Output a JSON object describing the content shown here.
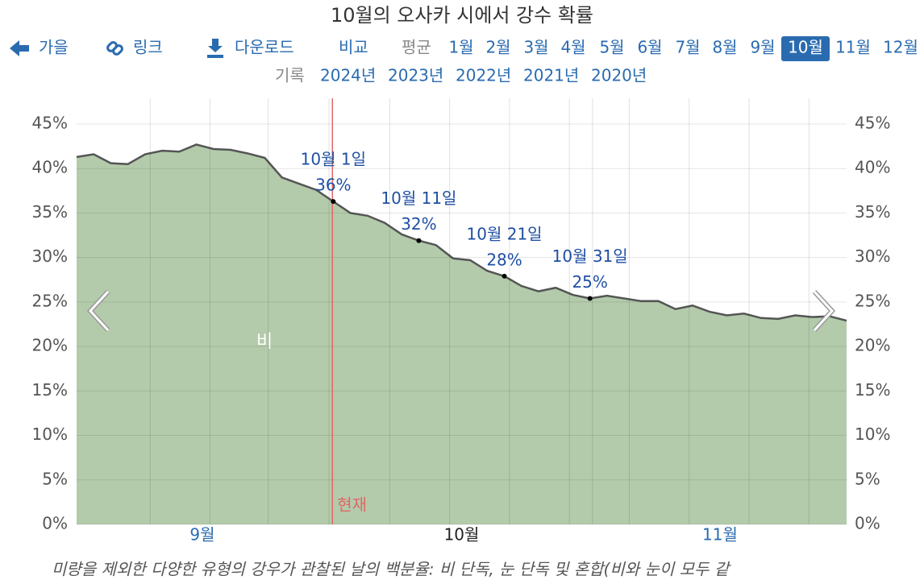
{
  "header": {
    "title": "10월의 오사카 시에서 강수 확률",
    "nav": [
      "가을",
      "링크",
      "다운로드",
      "비교"
    ],
    "average": "평균",
    "months": [
      "1월",
      "2월",
      "3월",
      "4월",
      "5월",
      "6월",
      "7월",
      "8월",
      "9월",
      "10월",
      "11월",
      "12월"
    ],
    "history": "기록",
    "years": [
      "2024년",
      "2023년",
      "2022년",
      "2021년",
      "2020년"
    ]
  },
  "chart_data": {
    "type": "area",
    "x": [
      0,
      2,
      4,
      6,
      8,
      10,
      12,
      14,
      16,
      18,
      20,
      22,
      24,
      26,
      28,
      30,
      32,
      34,
      36,
      38,
      40,
      42,
      44,
      46,
      48,
      50,
      52,
      54,
      56,
      58,
      60,
      62,
      64,
      66,
      68,
      70,
      72,
      74,
      76,
      78,
      80,
      82,
      84,
      86,
      88,
      90
    ],
    "series": [
      {
        "name": "비",
        "color": "#b3cbab",
        "values": [
          41.3,
          41.6,
          40.6,
          40.5,
          41.6,
          42.0,
          41.9,
          42.7,
          42.2,
          42.1,
          41.7,
          41.2,
          39.0,
          38.3,
          37.6,
          36.3,
          35.0,
          34.7,
          33.9,
          32.6,
          31.9,
          31.4,
          29.9,
          29.7,
          28.5,
          27.9,
          26.8,
          26.2,
          26.6,
          25.8,
          25.4,
          25.7,
          25.4,
          25.1,
          25.1,
          24.2,
          24.6,
          23.9,
          23.5,
          23.7,
          23.2,
          23.1,
          23.5,
          23.3,
          23.4,
          22.9
        ]
      }
    ],
    "xlim": [
      0,
      90
    ],
    "xticks": [
      {
        "value": 14.7,
        "label": "9월"
      },
      {
        "value": 45,
        "label": "10월"
      },
      {
        "value": 75.2,
        "label": "11월"
      }
    ],
    "xgrid": [
      8.6,
      15.6,
      22.4,
      29.5,
      36.6,
      43.6,
      50.6,
      57.6,
      60.3,
      64.6,
      71.6,
      78.6,
      85.6
    ],
    "ylim": [
      0,
      47.9
    ],
    "yticks": [
      {
        "value": 0,
        "label": "0%"
      },
      {
        "value": 5,
        "label": "5%"
      },
      {
        "value": 10,
        "label": "10%"
      },
      {
        "value": 15,
        "label": "15%"
      },
      {
        "value": 20,
        "label": "20%"
      },
      {
        "value": 25,
        "label": "25%"
      },
      {
        "value": 30,
        "label": "30%"
      },
      {
        "value": 35,
        "label": "35%"
      },
      {
        "value": 40,
        "label": "40%"
      },
      {
        "value": 45,
        "label": "45%"
      }
    ],
    "grid": true,
    "now": {
      "x": 29.9,
      "label": "현재"
    },
    "annotations": [
      {
        "x": 30,
        "y": 36.3,
        "label": "10월 1일",
        "value_label": "36%"
      },
      {
        "x": 40,
        "y": 31.9,
        "label": "10월 11일",
        "value_label": "32%"
      },
      {
        "x": 50,
        "y": 27.9,
        "label": "10월 21일",
        "value_label": "28%"
      },
      {
        "x": 60,
        "y": 25.4,
        "label": "10월 31일",
        "value_label": "25%"
      }
    ],
    "caption": "미량을 제외한 다양한 유형의 강우가 관찰된 날의 백분율: 비 단독, 눈 단독 및 혼합(비와 눈이 모두 같"
  }
}
